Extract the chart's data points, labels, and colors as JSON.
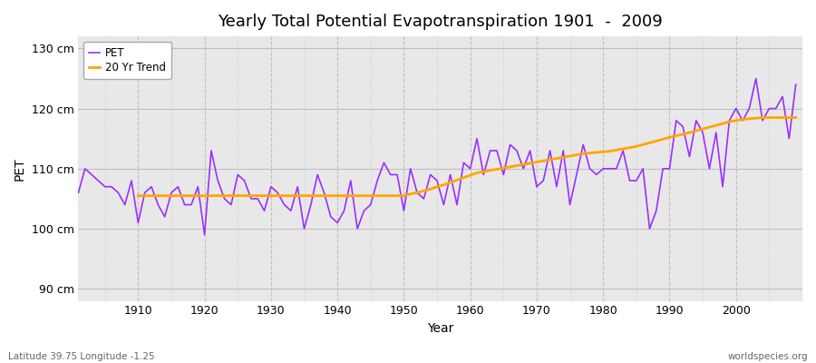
{
  "title": "Yearly Total Potential Evapotranspiration 1901  -  2009",
  "ylabel": "PET",
  "xlabel": "Year",
  "subtitle_left": "Latitude 39.75 Longitude -1.25",
  "subtitle_right": "worldspecies.org",
  "pet_color": "#9B30FF",
  "trend_color": "#FFA500",
  "fig_bg_color": "#FFFFFF",
  "plot_bg_color": "#E8E8E8",
  "ylim": [
    88,
    132
  ],
  "yticks": [
    90,
    100,
    110,
    120,
    130
  ],
  "ytick_labels": [
    "90 cm",
    "100 cm",
    "110 cm",
    "120 cm",
    "130 cm"
  ],
  "xlim": [
    1901,
    2010
  ],
  "xticks": [
    1910,
    1920,
    1930,
    1940,
    1950,
    1960,
    1970,
    1980,
    1990,
    2000
  ],
  "years": [
    1901,
    1902,
    1903,
    1904,
    1905,
    1906,
    1907,
    1908,
    1909,
    1910,
    1911,
    1912,
    1913,
    1914,
    1915,
    1916,
    1917,
    1918,
    1919,
    1920,
    1921,
    1922,
    1923,
    1924,
    1925,
    1926,
    1927,
    1928,
    1929,
    1930,
    1931,
    1932,
    1933,
    1934,
    1935,
    1936,
    1937,
    1938,
    1939,
    1940,
    1941,
    1942,
    1943,
    1944,
    1945,
    1946,
    1947,
    1948,
    1949,
    1950,
    1951,
    1952,
    1953,
    1954,
    1955,
    1956,
    1957,
    1958,
    1959,
    1960,
    1961,
    1962,
    1963,
    1964,
    1965,
    1966,
    1967,
    1968,
    1969,
    1970,
    1971,
    1972,
    1973,
    1974,
    1975,
    1976,
    1977,
    1978,
    1979,
    1980,
    1981,
    1982,
    1983,
    1984,
    1985,
    1986,
    1987,
    1988,
    1989,
    1990,
    1991,
    1992,
    1993,
    1994,
    1995,
    1996,
    1997,
    1998,
    1999,
    2000,
    2001,
    2002,
    2003,
    2004,
    2005,
    2006,
    2007,
    2008,
    2009
  ],
  "pet_values": [
    106,
    110,
    109,
    108,
    107,
    107,
    106,
    104,
    108,
    101,
    106,
    107,
    104,
    102,
    106,
    107,
    104,
    104,
    107,
    99,
    113,
    108,
    105,
    104,
    109,
    108,
    105,
    105,
    103,
    107,
    106,
    104,
    103,
    107,
    100,
    104,
    109,
    106,
    102,
    101,
    103,
    108,
    100,
    103,
    104,
    108,
    111,
    109,
    109,
    103,
    110,
    106,
    105,
    109,
    108,
    104,
    109,
    104,
    111,
    110,
    115,
    109,
    113,
    113,
    109,
    114,
    113,
    110,
    113,
    107,
    108,
    113,
    107,
    113,
    104,
    109,
    114,
    110,
    109,
    110,
    110,
    110,
    113,
    108,
    108,
    110,
    100,
    103,
    110,
    110,
    118,
    117,
    112,
    118,
    116,
    110,
    116,
    107,
    118,
    120,
    118,
    120,
    125,
    118,
    120,
    120,
    122,
    115,
    124
  ],
  "trend_years": [
    1910,
    1911,
    1912,
    1913,
    1914,
    1915,
    1916,
    1917,
    1918,
    1919,
    1920,
    1921,
    1922,
    1923,
    1924,
    1925,
    1926,
    1927,
    1928,
    1929,
    1930,
    1931,
    1932,
    1933,
    1934,
    1935,
    1936,
    1937,
    1938,
    1939,
    1940,
    1941,
    1942,
    1943,
    1944,
    1945,
    1946,
    1947,
    1948,
    1949,
    1950,
    1951,
    1952,
    1953,
    1954,
    1955,
    1956,
    1957,
    1958,
    1959,
    1960,
    1961,
    1962,
    1963,
    1964,
    1965,
    1966,
    1967,
    1968,
    1969,
    1970,
    1971,
    1972,
    1973,
    1974,
    1975,
    1976,
    1977,
    1978,
    1979,
    1980,
    1981,
    1982,
    1983,
    1984,
    1985,
    1986,
    1987,
    1988,
    1989,
    1990,
    1991,
    1992,
    1993,
    1994,
    1995,
    1996,
    1997,
    1998,
    1999,
    2000,
    2001,
    2002,
    2003,
    2004,
    2005,
    2006,
    2007,
    2008,
    2009
  ],
  "trend_values": [
    105.5,
    105.5,
    105.5,
    105.5,
    105.5,
    105.5,
    105.5,
    105.5,
    105.5,
    105.5,
    105.5,
    105.5,
    105.5,
    105.5,
    105.5,
    105.5,
    105.5,
    105.5,
    105.5,
    105.5,
    105.5,
    105.5,
    105.5,
    105.5,
    105.5,
    105.5,
    105.5,
    105.5,
    105.5,
    105.5,
    105.5,
    105.5,
    105.5,
    105.5,
    105.5,
    105.5,
    105.5,
    105.5,
    105.5,
    105.5,
    105.5,
    105.8,
    106.0,
    106.3,
    106.6,
    107.0,
    107.3,
    107.7,
    108.1,
    108.5,
    108.9,
    109.3,
    109.5,
    109.7,
    109.9,
    110.1,
    110.3,
    110.5,
    110.7,
    110.9,
    111.1,
    111.3,
    111.5,
    111.7,
    111.9,
    112.1,
    112.3,
    112.5,
    112.6,
    112.7,
    112.8,
    112.9,
    113.1,
    113.3,
    113.5,
    113.7,
    114.0,
    114.3,
    114.6,
    114.9,
    115.2,
    115.5,
    115.7,
    116.0,
    116.3,
    116.6,
    116.9,
    117.2,
    117.5,
    117.8,
    118.0,
    118.2,
    118.3,
    118.4,
    118.5,
    118.5,
    118.5,
    118.5,
    118.5,
    118.5
  ]
}
